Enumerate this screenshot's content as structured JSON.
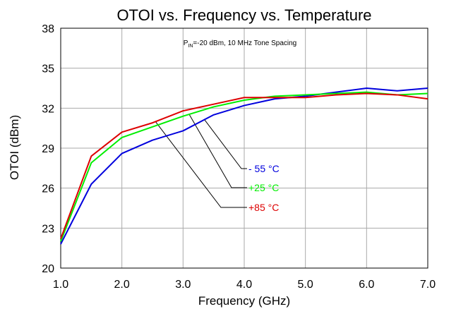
{
  "chart_data": {
    "type": "line",
    "title": "OTOI vs. Frequency vs. Temperature",
    "annotation": {
      "prefix": "P",
      "subscript": "IN",
      "text": "=-20 dBm, 10 MHz Tone Spacing"
    },
    "xlabel": "Frequency (GHz)",
    "ylabel": "OTOI (dBm)",
    "xlim": [
      1.0,
      7.0
    ],
    "ylim": [
      20,
      38
    ],
    "xticks": [
      "1.0",
      "2.0",
      "3.0",
      "4.0",
      "5.0",
      "6.0",
      "7.0"
    ],
    "yticks": [
      "20",
      "23",
      "26",
      "29",
      "32",
      "35",
      "38"
    ],
    "grid": true,
    "x": [
      1.0,
      1.5,
      2.0,
      2.5,
      3.0,
      3.5,
      4.0,
      4.5,
      5.0,
      5.5,
      6.0,
      6.5,
      7.0
    ],
    "series": [
      {
        "name": "- 55 °C",
        "color": "#0000dd",
        "values": [
          21.8,
          26.3,
          28.6,
          29.6,
          30.3,
          31.5,
          32.2,
          32.7,
          32.9,
          33.2,
          33.5,
          33.3,
          33.5
        ]
      },
      {
        "name": "+25 °C",
        "color": "#00ee00",
        "values": [
          22.0,
          27.9,
          29.8,
          30.6,
          31.4,
          32.1,
          32.6,
          32.9,
          33.0,
          33.1,
          33.2,
          33.0,
          33.1
        ]
      },
      {
        "name": "+85 °C",
        "color": "#dd0000",
        "values": [
          22.2,
          28.4,
          30.2,
          30.9,
          31.8,
          32.3,
          32.8,
          32.8,
          32.8,
          33.0,
          33.1,
          33.0,
          32.7
        ]
      }
    ]
  }
}
